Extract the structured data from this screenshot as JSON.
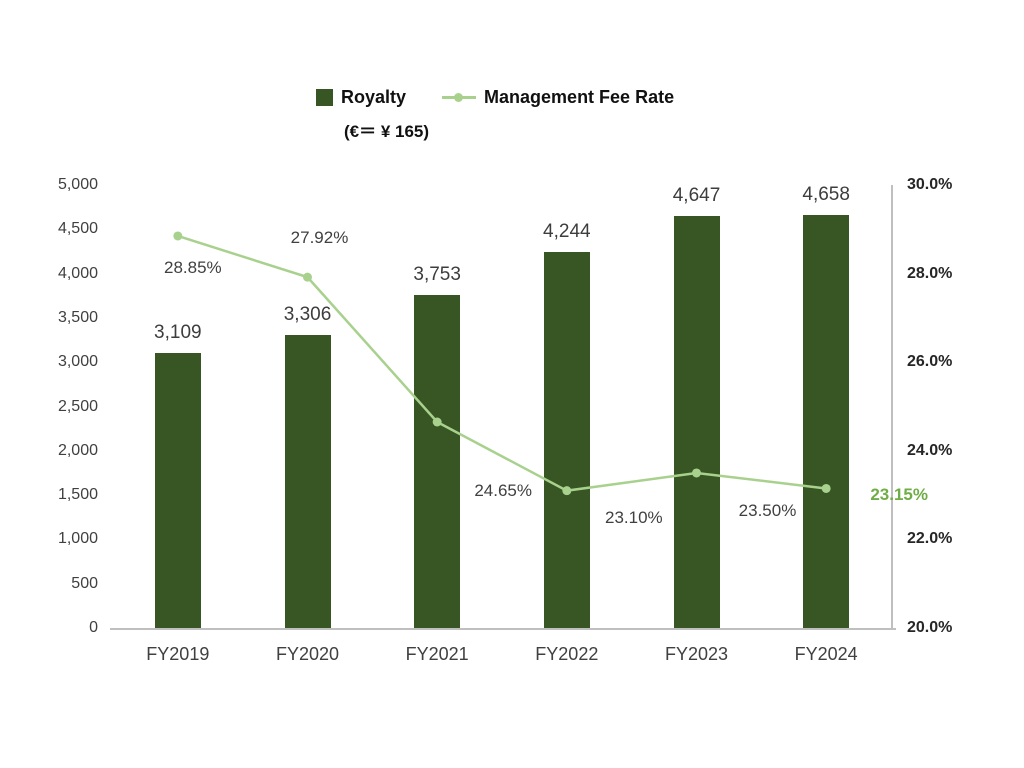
{
  "chart_data": {
    "type": "bar+line",
    "title": "",
    "subtitle": "(€＝ ¥ 165)",
    "categories": [
      "FY2019",
      "FY2020",
      "FY2021",
      "FY2022",
      "FY2023",
      "FY2024"
    ],
    "series": [
      {
        "name": "Royalty",
        "type": "bar",
        "axis": "left",
        "color": "#375623",
        "values": [
          3109,
          3306,
          3753,
          4244,
          4647,
          4658
        ],
        "labels": [
          "3,109",
          "3,306",
          "3,753",
          "4,244",
          "4,647",
          "4,658"
        ]
      },
      {
        "name": "Management Fee Rate",
        "type": "line",
        "axis": "right",
        "color": "#A9D18E",
        "values": [
          28.85,
          27.92,
          24.65,
          23.1,
          23.5,
          23.15
        ],
        "labels": [
          "28.85%",
          "27.92%",
          "24.65%",
          "23.10%",
          "23.50%",
          "23.15%"
        ],
        "last_label_color": "#70AD47"
      }
    ],
    "left_axis": {
      "min": 0,
      "max": 5000,
      "step": 500,
      "tick_labels": [
        "0",
        "500",
        "1,000",
        "1,500",
        "2,000",
        "2,500",
        "3,000",
        "3,500",
        "4,000",
        "4,500",
        "5,000"
      ]
    },
    "right_axis": {
      "min": 20,
      "max": 30,
      "step": 2,
      "tick_labels": [
        "20.0%",
        "22.0%",
        "24.0%",
        "26.0%",
        "28.0%",
        "30.0%"
      ]
    },
    "legend": [
      {
        "label": "Royalty",
        "marker": "square",
        "color": "#375623"
      },
      {
        "label": "Management Fee Rate",
        "marker": "line-dot",
        "color": "#A9D18E"
      }
    ],
    "grid": false,
    "legend_position": "top-center",
    "axis_line_color": "#BFBFBF",
    "text_color": "#404040"
  }
}
